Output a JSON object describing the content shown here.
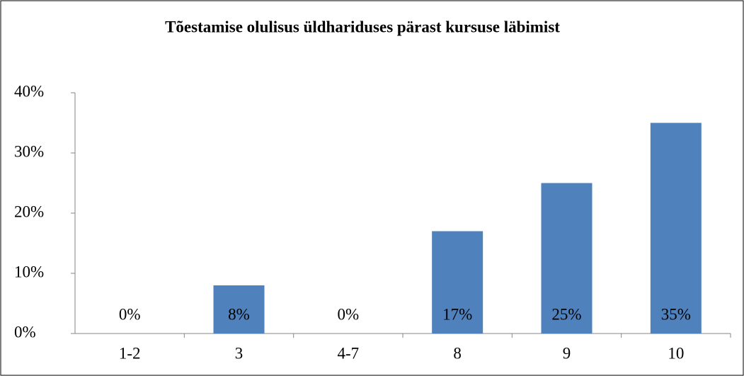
{
  "chart_data": {
    "type": "bar",
    "title": "Tõestamise olulisus üldhariduses pärast kursuse läbimist",
    "categories": [
      "1-2",
      "3",
      "4-7",
      "8",
      "9",
      "10"
    ],
    "values": [
      0,
      8,
      0,
      17,
      25,
      35
    ],
    "value_labels": [
      "0%",
      "8%",
      "0%",
      "17%",
      "25%",
      "35%"
    ],
    "color": "#4f81bd",
    "ylim": [
      0,
      40
    ],
    "yticks": [
      {
        "value": 0,
        "label": "0%"
      },
      {
        "value": 10,
        "label": "10%"
      },
      {
        "value": 20,
        "label": "20%"
      },
      {
        "value": 30,
        "label": "30%"
      },
      {
        "value": 40,
        "label": "40%"
      }
    ],
    "grid": false
  }
}
